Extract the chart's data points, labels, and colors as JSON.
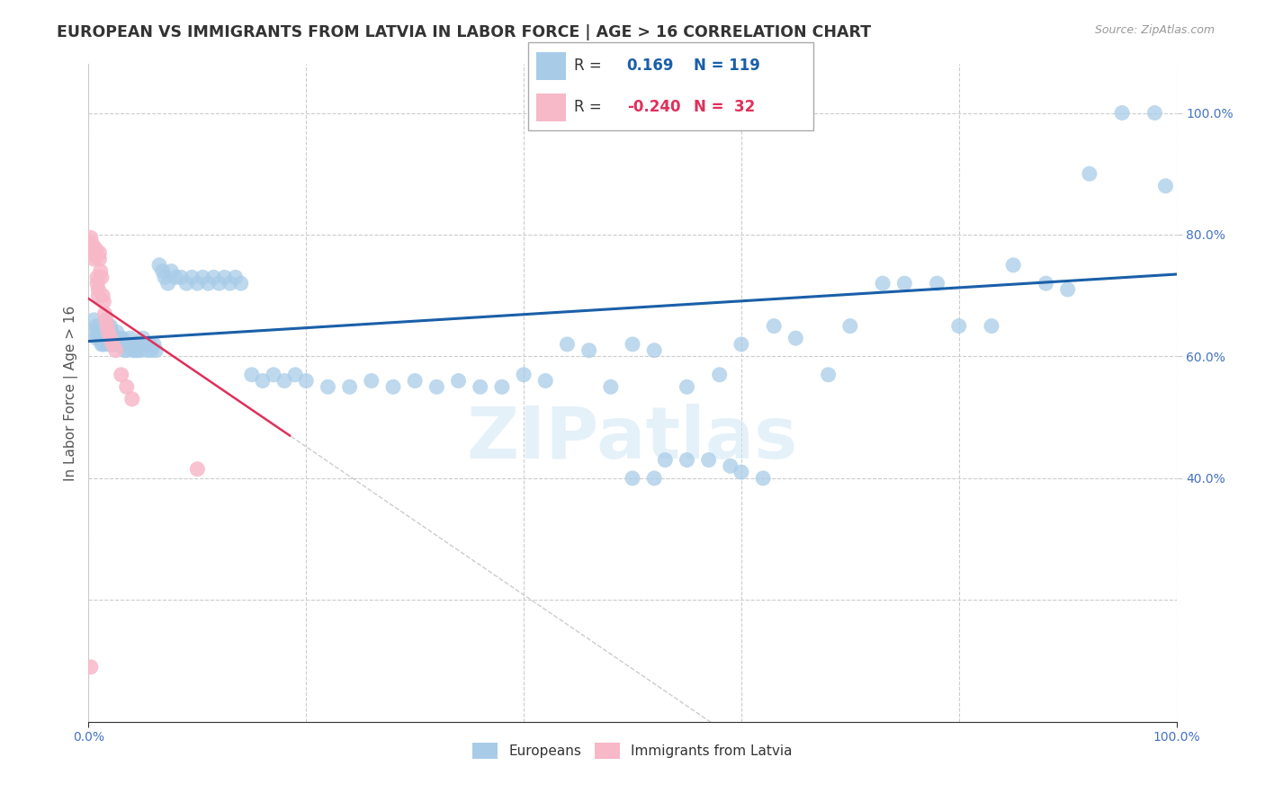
{
  "title": "EUROPEAN VS IMMIGRANTS FROM LATVIA IN LABOR FORCE | AGE > 16 CORRELATION CHART",
  "source": "Source: ZipAtlas.com",
  "ylabel": "In Labor Force | Age > 16",
  "xlim": [
    0.0,
    1.0
  ],
  "ylim": [
    0.0,
    1.08
  ],
  "xtick_positions": [
    0.0,
    0.2,
    0.4,
    0.6,
    0.8,
    1.0
  ],
  "ytick_positions": [
    0.0,
    0.2,
    0.4,
    0.6,
    0.8,
    1.0
  ],
  "blue_R": "0.169",
  "blue_N": "119",
  "pink_R": "-0.240",
  "pink_N": "32",
  "blue_color": "#a8cce8",
  "pink_color": "#f7b8c8",
  "blue_line_color": "#1a5fa8",
  "pink_line_color": "#e0305a",
  "pink_dash_color": "#cccccc",
  "watermark": "ZIPatlas",
  "background_color": "#ffffff",
  "grid_color": "#cccccc",
  "blue_trend_y0": 0.625,
  "blue_trend_y1": 0.735,
  "pink_trend_x0": 0.0,
  "pink_trend_y0": 0.695,
  "pink_trend_x1": 0.185,
  "pink_trend_y1": 0.47,
  "blue_scatter_x": [
    0.005,
    0.005,
    0.007,
    0.007,
    0.008,
    0.01,
    0.01,
    0.012,
    0.012,
    0.013,
    0.013,
    0.015,
    0.015,
    0.016,
    0.017,
    0.018,
    0.018,
    0.019,
    0.02,
    0.02,
    0.021,
    0.022,
    0.023,
    0.024,
    0.025,
    0.026,
    0.027,
    0.028,
    0.029,
    0.03,
    0.031,
    0.032,
    0.033,
    0.034,
    0.035,
    0.036,
    0.038,
    0.04,
    0.041,
    0.042,
    0.043,
    0.044,
    0.045,
    0.046,
    0.048,
    0.05,
    0.052,
    0.054,
    0.056,
    0.058,
    0.06,
    0.062,
    0.065,
    0.068,
    0.07,
    0.073,
    0.076,
    0.08,
    0.085,
    0.09,
    0.095,
    0.1,
    0.105,
    0.11,
    0.115,
    0.12,
    0.125,
    0.13,
    0.135,
    0.14,
    0.15,
    0.16,
    0.17,
    0.18,
    0.19,
    0.2,
    0.22,
    0.24,
    0.26,
    0.28,
    0.3,
    0.32,
    0.34,
    0.36,
    0.38,
    0.4,
    0.42,
    0.44,
    0.46,
    0.48,
    0.5,
    0.52,
    0.55,
    0.58,
    0.6,
    0.63,
    0.65,
    0.68,
    0.7,
    0.73,
    0.75,
    0.78,
    0.8,
    0.83,
    0.85,
    0.88,
    0.9,
    0.92,
    0.95,
    0.98,
    0.99,
    0.5,
    0.52,
    0.53,
    0.55,
    0.57,
    0.59,
    0.6,
    0.62
  ],
  "blue_scatter_y": [
    0.66,
    0.64,
    0.65,
    0.63,
    0.64,
    0.65,
    0.63,
    0.64,
    0.62,
    0.64,
    0.62,
    0.64,
    0.62,
    0.63,
    0.64,
    0.65,
    0.63,
    0.62,
    0.65,
    0.63,
    0.64,
    0.63,
    0.62,
    0.63,
    0.62,
    0.64,
    0.63,
    0.62,
    0.63,
    0.62,
    0.63,
    0.62,
    0.61,
    0.62,
    0.61,
    0.62,
    0.63,
    0.62,
    0.61,
    0.62,
    0.61,
    0.62,
    0.61,
    0.62,
    0.61,
    0.63,
    0.62,
    0.61,
    0.62,
    0.61,
    0.62,
    0.61,
    0.75,
    0.74,
    0.73,
    0.72,
    0.74,
    0.73,
    0.73,
    0.72,
    0.73,
    0.72,
    0.73,
    0.72,
    0.73,
    0.72,
    0.73,
    0.72,
    0.73,
    0.72,
    0.57,
    0.56,
    0.57,
    0.56,
    0.57,
    0.56,
    0.55,
    0.55,
    0.56,
    0.55,
    0.56,
    0.55,
    0.56,
    0.55,
    0.55,
    0.57,
    0.56,
    0.62,
    0.61,
    0.55,
    0.62,
    0.61,
    0.55,
    0.57,
    0.62,
    0.65,
    0.63,
    0.57,
    0.65,
    0.72,
    0.72,
    0.72,
    0.65,
    0.65,
    0.75,
    0.72,
    0.71,
    0.9,
    1.0,
    1.0,
    0.88,
    0.4,
    0.4,
    0.43,
    0.43,
    0.43,
    0.42,
    0.41,
    0.4
  ],
  "pink_scatter_x": [
    0.002,
    0.003,
    0.003,
    0.004,
    0.005,
    0.005,
    0.006,
    0.006,
    0.007,
    0.007,
    0.008,
    0.008,
    0.009,
    0.009,
    0.01,
    0.01,
    0.011,
    0.012,
    0.013,
    0.014,
    0.015,
    0.016,
    0.017,
    0.018,
    0.02,
    0.022,
    0.025,
    0.03,
    0.035,
    0.04,
    0.1,
    0.002
  ],
  "pink_scatter_y": [
    0.795,
    0.785,
    0.775,
    0.77,
    0.78,
    0.76,
    0.775,
    0.77,
    0.775,
    0.765,
    0.73,
    0.72,
    0.71,
    0.7,
    0.77,
    0.76,
    0.74,
    0.73,
    0.7,
    0.69,
    0.67,
    0.66,
    0.65,
    0.64,
    0.63,
    0.62,
    0.61,
    0.57,
    0.55,
    0.53,
    0.415,
    0.09
  ]
}
